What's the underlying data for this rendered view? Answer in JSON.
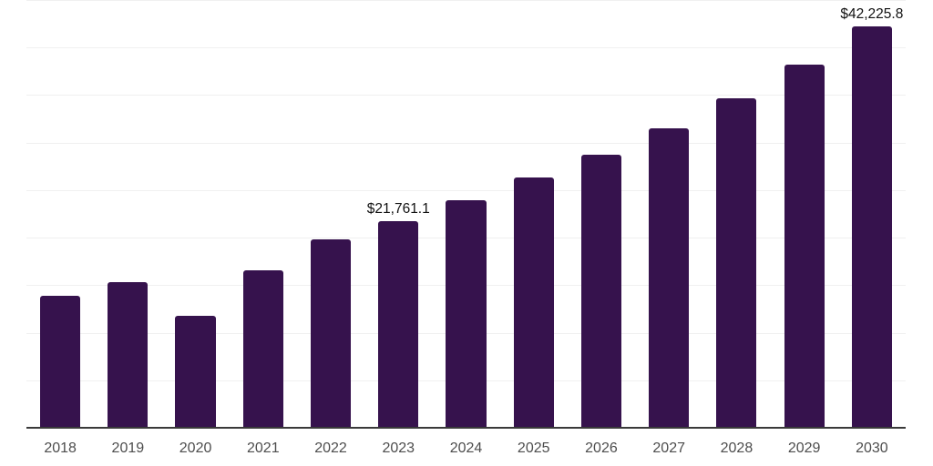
{
  "chart_data": {
    "type": "bar",
    "title": "",
    "xlabel": "",
    "ylabel": "",
    "categories": [
      "2018",
      "2019",
      "2020",
      "2021",
      "2022",
      "2023",
      "2024",
      "2025",
      "2026",
      "2027",
      "2028",
      "2029",
      "2030"
    ],
    "values": [
      13930,
      15320,
      11780,
      16520,
      19850,
      21761.1,
      23940,
      26300,
      28720,
      31530,
      34690,
      38200,
      42225.8
    ],
    "data_labels": [
      "",
      "",
      "",
      "",
      "",
      "$21,761.1",
      "",
      "",
      "",
      "",
      "",
      "",
      "$42,225.8"
    ],
    "ylim": [
      0,
      45000
    ],
    "gridline_step": 5000,
    "grid": "horizontal",
    "legend": "none",
    "colors": {
      "bar": "#36124D",
      "gridline": "#F0F0F0",
      "axis_line": "#3A3A3A",
      "tick_label": "#4D4D4D",
      "data_label": "#111111",
      "background": "#FFFFFF"
    }
  }
}
